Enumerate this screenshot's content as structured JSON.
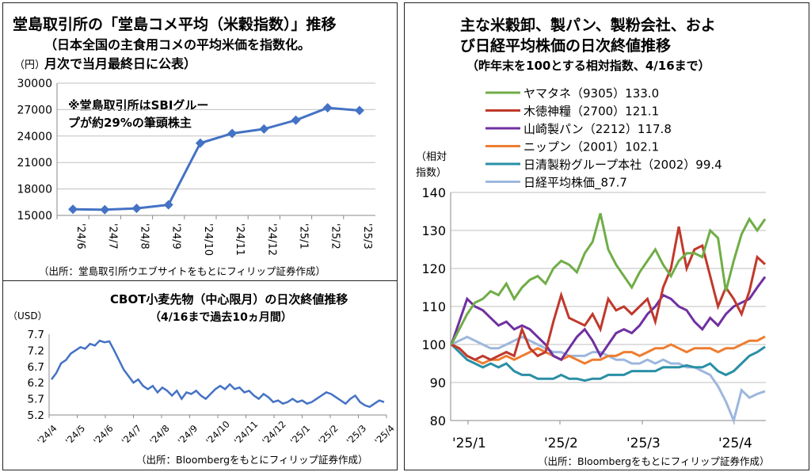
{
  "rice_chart": {
    "type": "line",
    "title": "堂島取引所の「堂島コメ平均（米穀指数）」推移",
    "subtitle_lines": [
      "（日本全国の主食用コメの平均米価を指数化。",
      "月次で当月最終日に公表）"
    ],
    "ylabel": "（円）",
    "annotation_lines": [
      "※堂島取引所はSBIグルー",
      "プが約29%の筆頭株主"
    ],
    "categories": [
      "'24/6",
      "'24/7",
      "'24/8",
      "'24/9",
      "'24/10",
      "'24/11",
      "'24/12",
      "'25/1",
      "'25/2",
      "'25/3"
    ],
    "values": [
      15700,
      15650,
      15800,
      16200,
      23200,
      24300,
      24800,
      25800,
      27200,
      26900
    ],
    "yticks": [
      "30000",
      "27000",
      "24000",
      "21000",
      "18000",
      "15000"
    ],
    "ylim": [
      15000,
      30000
    ],
    "source": "（出所：堂島取引所ウエブサイトをもとにフィリップ証券作成）",
    "color": "#4472C4"
  },
  "wheat_chart": {
    "type": "line",
    "title": "CBOT小麦先物（中心限月）の日次終値推移",
    "subtitle": "（4/16まで過去10ヵ月間）",
    "ylabel": "（USD）",
    "yticks": [
      "7.7",
      "7.2",
      "6.7",
      "6.2",
      "5.7",
      "5.2"
    ],
    "ylim": [
      5.2,
      7.7
    ],
    "xticks": [
      "'24/4",
      "'24/5",
      "'24/6",
      "'24/7",
      "'24/8",
      "'24/9",
      "'24/10",
      "'24/11",
      "'24/12",
      "'25/1",
      "'25/2",
      "'25/3",
      "'25/4"
    ],
    "values": [
      6.3,
      6.5,
      6.8,
      6.9,
      7.1,
      7.2,
      7.3,
      7.25,
      7.4,
      7.35,
      7.5,
      7.45,
      7.48,
      7.2,
      6.9,
      6.6,
      6.4,
      6.2,
      6.3,
      6.1,
      6.0,
      6.1,
      5.9,
      6.05,
      5.95,
      5.8,
      5.95,
      5.7,
      5.9,
      5.85,
      5.95,
      5.8,
      5.7,
      5.85,
      6.0,
      6.1,
      6.0,
      6.15,
      6.0,
      6.05,
      5.9,
      5.95,
      5.8,
      5.7,
      5.85,
      5.75,
      5.6,
      5.65,
      5.55,
      5.6,
      5.7,
      5.6,
      5.65,
      5.55,
      5.6,
      5.7,
      5.8,
      5.9,
      5.85,
      5.75,
      5.65,
      5.55,
      5.7,
      5.8,
      5.6,
      5.5,
      5.45,
      5.55,
      5.65,
      5.6
    ],
    "source": "（出所：Bloombergをもとにフィリップ証券作成）",
    "color": "#4472C4"
  },
  "stocks_chart": {
    "type": "line",
    "title_lines": [
      "主な米穀卸、製パン、製粉会社、およ",
      "び日経平均株価の日次終値推移"
    ],
    "subtitle": "（昨年末を100とする相対指数、4/16まで）",
    "ylabel_lines": [
      "（相対",
      "指数）"
    ],
    "yticks": [
      "140",
      "130",
      "120",
      "110",
      "100",
      "90",
      "80"
    ],
    "ylim": [
      80,
      140
    ],
    "xticks": [
      "'25/1",
      "'25/2",
      "'25/3",
      "'25/4"
    ],
    "source": "（出所：Bloombergをもとにフィリップ証券作成）",
    "series": [
      {
        "name": "ヤマタネ（9305）133.0",
        "color": "#70AD47",
        "values": [
          100,
          104,
          108,
          111,
          112,
          114,
          113,
          116,
          112,
          115,
          117,
          118,
          116,
          120,
          122,
          121,
          119,
          124,
          127,
          134.5,
          125,
          121,
          118,
          115,
          119,
          122,
          125,
          121,
          118,
          122,
          124,
          124,
          123,
          130,
          128,
          114,
          122,
          129,
          133,
          130,
          133
        ]
      },
      {
        "name": "木徳神糧（2700）121.1",
        "color": "#C0392B",
        "values": [
          100,
          99,
          97,
          96,
          97,
          96,
          97,
          98,
          97,
          104,
          99,
          97,
          98,
          106,
          113,
          107,
          106,
          105,
          108,
          104,
          112,
          109,
          110,
          108,
          110,
          112,
          106,
          115,
          120,
          131,
          120,
          125,
          126,
          118,
          110,
          115,
          112,
          108,
          114,
          123,
          121.1
        ]
      },
      {
        "name": "山崎製パン（2212）117.8",
        "color": "#7030A0",
        "values": [
          100,
          106,
          112,
          110,
          109,
          107,
          105,
          106,
          104,
          105,
          104,
          102,
          100,
          97,
          96,
          99,
          102,
          104,
          101,
          97,
          100,
          103,
          104,
          103,
          105,
          108,
          110,
          113,
          112,
          110,
          109,
          106,
          104,
          107,
          105,
          108,
          110,
          111,
          112,
          115,
          117.8
        ]
      },
      {
        "name": "ニップン（2001）102.1",
        "color": "#ED7D31",
        "values": [
          100,
          99,
          97,
          96,
          95,
          96,
          96,
          97,
          96,
          97,
          98,
          99,
          98,
          97,
          96,
          97,
          96,
          95,
          96,
          96,
          97,
          97,
          98,
          98,
          97,
          98,
          99,
          99,
          100,
          99,
          98,
          99,
          99,
          99,
          98,
          99,
          99,
          100,
          101,
          101,
          102.1
        ]
      },
      {
        "name": "日清製粉グループ本社（2002）99.4",
        "color": "#2A8FA6",
        "values": [
          100,
          98,
          96,
          95,
          94,
          95,
          94,
          95,
          93,
          92,
          92,
          91,
          91,
          91,
          92,
          91,
          91,
          90.5,
          91,
          91,
          92,
          92,
          92,
          93,
          93,
          93,
          93,
          94,
          94,
          94,
          94.5,
          94,
          94,
          95,
          93,
          92,
          93,
          95,
          97,
          98,
          99.4
        ]
      },
      {
        "name": "日経平均株価_87.7",
        "color": "#9DB7DD",
        "values": [
          100,
          101,
          102,
          101,
          100,
          99,
          99,
          100,
          101,
          102,
          101,
          100,
          99,
          98,
          98,
          97,
          97,
          97,
          98,
          98,
          97,
          96,
          96,
          95,
          95,
          96,
          95,
          96,
          95,
          95,
          94,
          94,
          93,
          92,
          89,
          85,
          80,
          88,
          86,
          87,
          87.7
        ]
      }
    ]
  }
}
